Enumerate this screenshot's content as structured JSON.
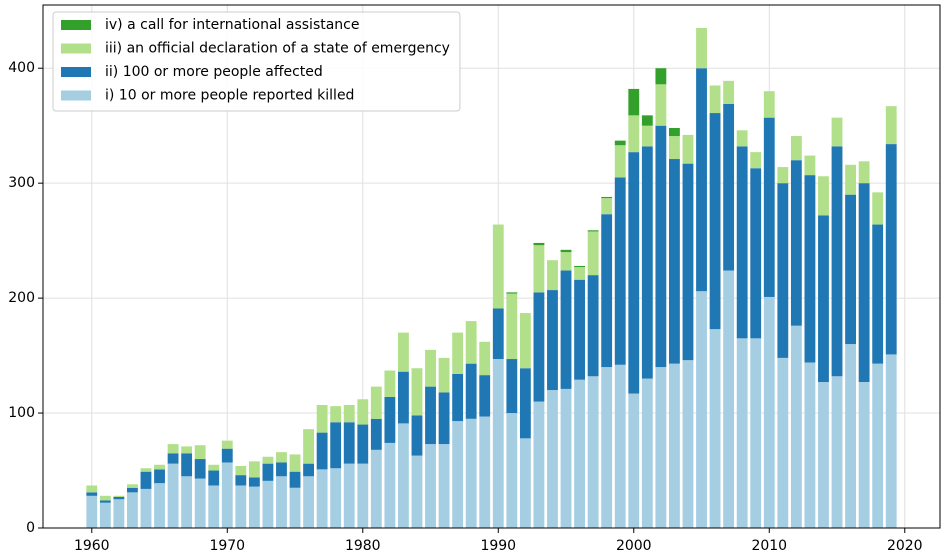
{
  "chart_data": {
    "type": "stacked_bar",
    "x": [
      1960,
      1961,
      1962,
      1963,
      1964,
      1965,
      1966,
      1967,
      1968,
      1969,
      1970,
      1971,
      1972,
      1973,
      1974,
      1975,
      1976,
      1977,
      1978,
      1979,
      1980,
      1981,
      1982,
      1983,
      1984,
      1985,
      1986,
      1987,
      1988,
      1989,
      1990,
      1991,
      1992,
      1993,
      1994,
      1995,
      1996,
      1997,
      1998,
      1999,
      2000,
      2001,
      2002,
      2003,
      2004,
      2005,
      2006,
      2007,
      2008,
      2009,
      2010,
      2011,
      2012,
      2013,
      2014,
      2015,
      2016,
      2017,
      2018,
      2019
    ],
    "series": [
      {
        "name": "i) 10 or more people reported killed",
        "color": "#a6cee3",
        "values": [
          28,
          22,
          25,
          31,
          34,
          39,
          56,
          45,
          43,
          37,
          57,
          37,
          36,
          41,
          45,
          35,
          45,
          51,
          52,
          56,
          56,
          68,
          74,
          91,
          63,
          73,
          73,
          93,
          95,
          97,
          147,
          100,
          78,
          110,
          120,
          121,
          129,
          132,
          140,
          142,
          117,
          130,
          140,
          143,
          146,
          206,
          173,
          224,
          165,
          165,
          201,
          148,
          176,
          144,
          127,
          132,
          160,
          127,
          143,
          151
        ]
      },
      {
        "name": "ii) 100 or more people affected",
        "color": "#1f78b4",
        "values": [
          3,
          2,
          2,
          4,
          15,
          12,
          9,
          20,
          17,
          13,
          12,
          9,
          8,
          15,
          12,
          14,
          11,
          32,
          40,
          36,
          34,
          27,
          40,
          45,
          35,
          50,
          45,
          41,
          48,
          36,
          44,
          47,
          61,
          95,
          87,
          103,
          87,
          88,
          133,
          163,
          210,
          202,
          210,
          178,
          171,
          194,
          188,
          145,
          167,
          148,
          156,
          152,
          144,
          163,
          145,
          200,
          130,
          173,
          121,
          183
        ]
      },
      {
        "name": "iii) an official declaration of a state of emergency",
        "color": "#b2df8a",
        "values": [
          6,
          4,
          1,
          3,
          3,
          4,
          8,
          6,
          12,
          5,
          7,
          8,
          14,
          6,
          9,
          15,
          30,
          24,
          14,
          15,
          22,
          28,
          23,
          34,
          41,
          32,
          30,
          36,
          37,
          29,
          73,
          57,
          48,
          41,
          26,
          16,
          11,
          38,
          14,
          28,
          32,
          18,
          36,
          20,
          25,
          35,
          24,
          20,
          14,
          14,
          23,
          14,
          21,
          17,
          34,
          25,
          26,
          19,
          28,
          33
        ]
      },
      {
        "name": "iv) a call for international assistance",
        "color": "#33a02c",
        "values": [
          0,
          0,
          0,
          0,
          0,
          0,
          0,
          0,
          0,
          0,
          0,
          0,
          0,
          0,
          0,
          0,
          0,
          0,
          0,
          0,
          0,
          0,
          0,
          0,
          0,
          0,
          0,
          0,
          0,
          0,
          0,
          1,
          0,
          2,
          0,
          2,
          1,
          1,
          1,
          4,
          23,
          9,
          14,
          7,
          0,
          0,
          0,
          0,
          0,
          0,
          0,
          0,
          0,
          0,
          0,
          0,
          0,
          0,
          0,
          0
        ]
      }
    ],
    "xlim": [
      1956.4,
      2022.6
    ],
    "xticks": [
      1960,
      1970,
      1980,
      1990,
      2000,
      2010,
      2020
    ],
    "ylim": [
      0,
      455
    ],
    "yticks": [
      0,
      100,
      200,
      300,
      400
    ],
    "grid": true,
    "legend": "upper left"
  }
}
